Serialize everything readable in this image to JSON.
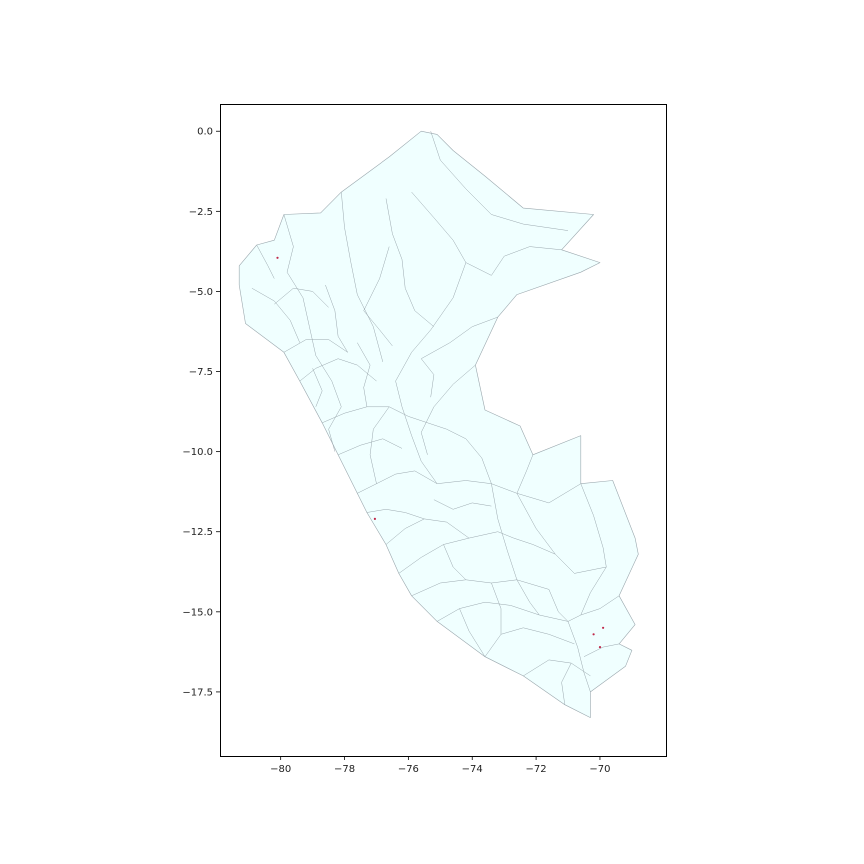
{
  "chart_data": {
    "type": "map",
    "title": "",
    "xlabel": "",
    "ylabel": "",
    "xlim": [
      -81.9,
      -67.9
    ],
    "ylim": [
      -19.5,
      0.85
    ],
    "xticks": [
      {
        "value": -80,
        "label": "−80"
      },
      {
        "value": -78,
        "label": "−78"
      },
      {
        "value": -76,
        "label": "−76"
      },
      {
        "value": -74,
        "label": "−74"
      },
      {
        "value": -72,
        "label": "−72"
      },
      {
        "value": -70,
        "label": "−70"
      }
    ],
    "yticks": [
      {
        "value": 0.0,
        "label": "0.0"
      },
      {
        "value": -2.5,
        "label": "−2.5"
      },
      {
        "value": -5.0,
        "label": "−5.0"
      },
      {
        "value": -7.5,
        "label": "−7.5"
      },
      {
        "value": -10.0,
        "label": "−10.0"
      },
      {
        "value": -12.5,
        "label": "−12.5"
      },
      {
        "value": -15.0,
        "label": "−15.0"
      },
      {
        "value": -17.5,
        "label": "−17.5"
      }
    ],
    "grid": false,
    "legend": "none",
    "fill_color": "#f0ffff",
    "edge_color": "#9aa7ad",
    "highlight_color": "#c0284a",
    "outline": [
      [
        -81.3,
        -4.2
      ],
      [
        -80.75,
        -3.55
      ],
      [
        -80.2,
        -3.4
      ],
      [
        -79.9,
        -2.6
      ],
      [
        -78.75,
        -2.55
      ],
      [
        -78.1,
        -1.9
      ],
      [
        -76.6,
        -0.8
      ],
      [
        -75.6,
        0.0
      ],
      [
        -75.1,
        -0.1
      ],
      [
        -74.6,
        -0.6
      ],
      [
        -73.6,
        -1.4
      ],
      [
        -72.4,
        -2.4
      ],
      [
        -70.2,
        -2.6
      ],
      [
        -71.2,
        -3.7
      ],
      [
        -70.0,
        -4.1
      ],
      [
        -70.6,
        -4.4
      ],
      [
        -72.6,
        -5.1
      ],
      [
        -73.2,
        -5.8
      ],
      [
        -73.9,
        -7.3
      ],
      [
        -73.6,
        -8.7
      ],
      [
        -72.5,
        -9.2
      ],
      [
        -72.1,
        -10.1
      ],
      [
        -70.6,
        -9.5
      ],
      [
        -70.6,
        -11.0
      ],
      [
        -69.6,
        -10.9
      ],
      [
        -68.9,
        -12.7
      ],
      [
        -68.8,
        -13.2
      ],
      [
        -69.4,
        -14.5
      ],
      [
        -68.9,
        -15.4
      ],
      [
        -69.4,
        -16.0
      ],
      [
        -69.0,
        -16.2
      ],
      [
        -69.2,
        -16.7
      ],
      [
        -70.3,
        -17.5
      ],
      [
        -70.3,
        -18.3
      ],
      [
        -71.1,
        -17.9
      ],
      [
        -72.4,
        -17.0
      ],
      [
        -73.6,
        -16.4
      ],
      [
        -75.1,
        -15.3
      ],
      [
        -75.9,
        -14.5
      ],
      [
        -76.3,
        -13.8
      ],
      [
        -76.7,
        -12.9
      ],
      [
        -77.3,
        -11.9
      ],
      [
        -77.6,
        -11.3
      ],
      [
        -78.2,
        -10.1
      ],
      [
        -78.7,
        -9.1
      ],
      [
        -79.4,
        -7.8
      ],
      [
        -79.9,
        -6.9
      ],
      [
        -81.1,
        -6.0
      ],
      [
        -81.3,
        -4.8
      ],
      [
        -81.3,
        -4.2
      ]
    ],
    "boundaries": [
      [
        [
          -75.3,
          0.0
        ],
        [
          -75.0,
          -0.9
        ],
        [
          -74.2,
          -1.8
        ],
        [
          -73.4,
          -2.6
        ],
        [
          -72.4,
          -2.9
        ],
        [
          -71.0,
          -3.1
        ]
      ],
      [
        [
          -76.7,
          -2.1
        ],
        [
          -76.5,
          -3.2
        ],
        [
          -76.2,
          -4.0
        ],
        [
          -76.1,
          -4.9
        ],
        [
          -75.8,
          -5.6
        ],
        [
          -75.2,
          -6.1
        ]
      ],
      [
        [
          -75.9,
          -1.9
        ],
        [
          -75.2,
          -2.7
        ],
        [
          -74.6,
          -3.4
        ],
        [
          -74.2,
          -4.1
        ],
        [
          -73.4,
          -4.5
        ]
      ],
      [
        [
          -78.1,
          -1.9
        ],
        [
          -78.0,
          -3.0
        ],
        [
          -77.8,
          -4.1
        ],
        [
          -77.6,
          -5.1
        ],
        [
          -77.1,
          -6.1
        ],
        [
          -76.8,
          -7.2
        ]
      ],
      [
        [
          -76.6,
          -3.6
        ],
        [
          -76.9,
          -4.6
        ],
        [
          -77.4,
          -5.6
        ]
      ],
      [
        [
          -74.2,
          -4.1
        ],
        [
          -74.6,
          -5.2
        ],
        [
          -75.3,
          -6.2
        ],
        [
          -75.9,
          -6.9
        ],
        [
          -76.4,
          -7.8
        ]
      ],
      [
        [
          -73.2,
          -5.8
        ],
        [
          -74.0,
          -6.1
        ],
        [
          -74.7,
          -6.6
        ],
        [
          -75.6,
          -7.1
        ]
      ],
      [
        [
          -79.8,
          -4.4
        ],
        [
          -79.3,
          -5.2
        ],
        [
          -79.1,
          -6.1
        ],
        [
          -78.9,
          -7.0
        ],
        [
          -78.4,
          -7.8
        ],
        [
          -78.1,
          -8.6
        ]
      ],
      [
        [
          -80.9,
          -4.9
        ],
        [
          -80.2,
          -5.3
        ],
        [
          -79.7,
          -5.9
        ],
        [
          -79.4,
          -6.6
        ]
      ],
      [
        [
          -79.4,
          -7.8
        ],
        [
          -78.9,
          -7.4
        ],
        [
          -78.2,
          -7.1
        ],
        [
          -77.6,
          -7.3
        ],
        [
          -77.0,
          -7.8
        ]
      ],
      [
        [
          -78.7,
          -9.1
        ],
        [
          -78.0,
          -8.8
        ],
        [
          -77.3,
          -8.6
        ],
        [
          -76.6,
          -8.6
        ],
        [
          -76.0,
          -8.9
        ]
      ],
      [
        [
          -76.4,
          -7.8
        ],
        [
          -76.2,
          -8.6
        ],
        [
          -75.9,
          -9.5
        ],
        [
          -75.6,
          -10.3
        ],
        [
          -75.1,
          -11.0
        ]
      ],
      [
        [
          -73.9,
          -7.3
        ],
        [
          -74.6,
          -7.9
        ],
        [
          -75.2,
          -8.6
        ],
        [
          -75.6,
          -9.4
        ],
        [
          -75.4,
          -10.1
        ]
      ],
      [
        [
          -77.6,
          -11.3
        ],
        [
          -77.0,
          -11.0
        ],
        [
          -76.4,
          -10.7
        ],
        [
          -75.8,
          -10.6
        ],
        [
          -75.1,
          -11.0
        ]
      ],
      [
        [
          -75.1,
          -11.0
        ],
        [
          -74.2,
          -10.9
        ],
        [
          -73.4,
          -11.0
        ],
        [
          -72.6,
          -11.3
        ],
        [
          -71.6,
          -11.6
        ],
        [
          -70.6,
          -11.0
        ]
      ],
      [
        [
          -73.4,
          -11.0
        ],
        [
          -73.2,
          -12.1
        ],
        [
          -72.9,
          -13.1
        ],
        [
          -72.6,
          -14.0
        ]
      ],
      [
        [
          -70.6,
          -11.0
        ],
        [
          -70.2,
          -12.0
        ],
        [
          -69.9,
          -13.0
        ],
        [
          -69.8,
          -13.6
        ]
      ],
      [
        [
          -72.6,
          -11.3
        ],
        [
          -72.0,
          -12.4
        ],
        [
          -71.4,
          -13.2
        ],
        [
          -70.8,
          -13.8
        ],
        [
          -69.8,
          -13.6
        ]
      ],
      [
        [
          -76.3,
          -13.8
        ],
        [
          -75.6,
          -13.3
        ],
        [
          -74.9,
          -12.9
        ],
        [
          -74.1,
          -12.7
        ],
        [
          -73.2,
          -12.5
        ]
      ],
      [
        [
          -75.9,
          -14.5
        ],
        [
          -75.0,
          -14.1
        ],
        [
          -74.2,
          -14.0
        ],
        [
          -73.4,
          -14.1
        ],
        [
          -72.6,
          -14.0
        ],
        [
          -71.6,
          -14.3
        ]
      ],
      [
        [
          -75.1,
          -15.3
        ],
        [
          -74.4,
          -14.9
        ],
        [
          -73.6,
          -14.7
        ],
        [
          -72.8,
          -14.8
        ],
        [
          -71.9,
          -15.1
        ],
        [
          -71.0,
          -15.3
        ]
      ],
      [
        [
          -73.6,
          -16.4
        ],
        [
          -73.1,
          -15.7
        ],
        [
          -72.4,
          -15.5
        ],
        [
          -71.6,
          -15.7
        ],
        [
          -70.8,
          -16.0
        ]
      ],
      [
        [
          -72.4,
          -17.0
        ],
        [
          -71.6,
          -16.5
        ],
        [
          -70.9,
          -16.6
        ],
        [
          -70.3,
          -17.0
        ]
      ],
      [
        [
          -71.0,
          -15.3
        ],
        [
          -70.7,
          -16.1
        ],
        [
          -70.5,
          -16.9
        ],
        [
          -70.3,
          -17.5
        ]
      ],
      [
        [
          -69.8,
          -13.6
        ],
        [
          -70.3,
          -14.4
        ],
        [
          -70.6,
          -15.1
        ],
        [
          -71.0,
          -15.3
        ]
      ],
      [
        [
          -79.9,
          -6.9
        ],
        [
          -79.2,
          -6.5
        ],
        [
          -78.5,
          -6.5
        ],
        [
          -77.9,
          -6.9
        ]
      ],
      [
        [
          -80.2,
          -5.4
        ],
        [
          -79.6,
          -4.9
        ],
        [
          -79.0,
          -5.0
        ],
        [
          -78.5,
          -5.5
        ]
      ],
      [
        [
          -78.6,
          -4.8
        ],
        [
          -78.3,
          -5.6
        ],
        [
          -78.2,
          -6.4
        ],
        [
          -77.9,
          -6.9
        ]
      ],
      [
        [
          -77.6,
          -6.6
        ],
        [
          -77.2,
          -7.3
        ],
        [
          -77.4,
          -8.0
        ],
        [
          -77.3,
          -8.6
        ]
      ],
      [
        [
          -76.6,
          -8.6
        ],
        [
          -77.1,
          -9.3
        ],
        [
          -77.2,
          -10.1
        ],
        [
          -77.0,
          -11.0
        ]
      ],
      [
        [
          -78.2,
          -10.1
        ],
        [
          -77.5,
          -9.8
        ],
        [
          -76.8,
          -9.6
        ],
        [
          -76.2,
          -9.9
        ]
      ],
      [
        [
          -76.7,
          -12.9
        ],
        [
          -76.1,
          -12.4
        ],
        [
          -75.5,
          -12.1
        ],
        [
          -74.8,
          -12.2
        ],
        [
          -74.1,
          -12.7
        ]
      ],
      [
        [
          -74.9,
          -12.9
        ],
        [
          -74.6,
          -13.6
        ],
        [
          -74.2,
          -14.0
        ]
      ],
      [
        [
          -73.2,
          -12.5
        ],
        [
          -72.7,
          -12.7
        ],
        [
          -72.1,
          -12.9
        ],
        [
          -71.4,
          -13.2
        ]
      ],
      [
        [
          -75.2,
          -11.5
        ],
        [
          -74.6,
          -11.8
        ],
        [
          -74.0,
          -11.6
        ],
        [
          -73.4,
          -11.7
        ]
      ],
      [
        [
          -78.1,
          -8.6
        ],
        [
          -78.5,
          -9.3
        ],
        [
          -78.3,
          -10.0
        ]
      ],
      [
        [
          -79.0,
          -7.4
        ],
        [
          -78.7,
          -8.1
        ],
        [
          -78.9,
          -8.6
        ]
      ],
      [
        [
          -76.0,
          -8.9
        ],
        [
          -75.4,
          -9.1
        ],
        [
          -74.8,
          -9.3
        ],
        [
          -74.2,
          -9.6
        ]
      ],
      [
        [
          -74.2,
          -9.6
        ],
        [
          -73.7,
          -10.2
        ],
        [
          -73.4,
          -11.0
        ]
      ],
      [
        [
          -72.1,
          -10.1
        ],
        [
          -72.3,
          -10.6
        ],
        [
          -72.6,
          -11.3
        ]
      ],
      [
        [
          -71.6,
          -14.3
        ],
        [
          -71.3,
          -15.0
        ],
        [
          -71.0,
          -15.3
        ]
      ],
      [
        [
          -72.6,
          -14.0
        ],
        [
          -72.2,
          -14.7
        ],
        [
          -71.9,
          -15.1
        ]
      ],
      [
        [
          -73.4,
          -14.1
        ],
        [
          -73.1,
          -14.9
        ],
        [
          -73.1,
          -15.7
        ]
      ],
      [
        [
          -74.4,
          -14.9
        ],
        [
          -74.1,
          -15.6
        ],
        [
          -73.6,
          -16.4
        ]
      ],
      [
        [
          -69.4,
          -14.5
        ],
        [
          -70.0,
          -14.9
        ],
        [
          -70.6,
          -15.1
        ]
      ],
      [
        [
          -69.4,
          -16.0
        ],
        [
          -69.9,
          -16.1
        ],
        [
          -70.5,
          -16.4
        ]
      ],
      [
        [
          -70.9,
          -16.6
        ],
        [
          -71.2,
          -17.2
        ],
        [
          -71.1,
          -17.9
        ]
      ],
      [
        [
          -80.75,
          -3.55
        ],
        [
          -80.4,
          -4.2
        ],
        [
          -80.2,
          -4.6
        ]
      ],
      [
        [
          -79.9,
          -2.6
        ],
        [
          -79.6,
          -3.6
        ],
        [
          -79.8,
          -4.4
        ]
      ],
      [
        [
          -77.4,
          -5.6
        ],
        [
          -76.9,
          -6.2
        ],
        [
          -76.5,
          -6.7
        ]
      ],
      [
        [
          -75.6,
          -7.1
        ],
        [
          -75.2,
          -7.6
        ],
        [
          -75.3,
          -8.3
        ]
      ],
      [
        [
          -77.3,
          -11.9
        ],
        [
          -76.7,
          -11.8
        ],
        [
          -76.1,
          -11.9
        ],
        [
          -75.5,
          -12.1
        ]
      ],
      [
        [
          -71.2,
          -3.7
        ],
        [
          -72.2,
          -3.6
        ],
        [
          -73.0,
          -3.9
        ],
        [
          -73.4,
          -4.5
        ]
      ]
    ],
    "highlights": [
      [
        -80.1,
        -3.95
      ],
      [
        -70.2,
        -15.7
      ],
      [
        -69.9,
        -15.5
      ],
      [
        -70.0,
        -16.1
      ],
      [
        -77.05,
        -12.1
      ]
    ]
  }
}
